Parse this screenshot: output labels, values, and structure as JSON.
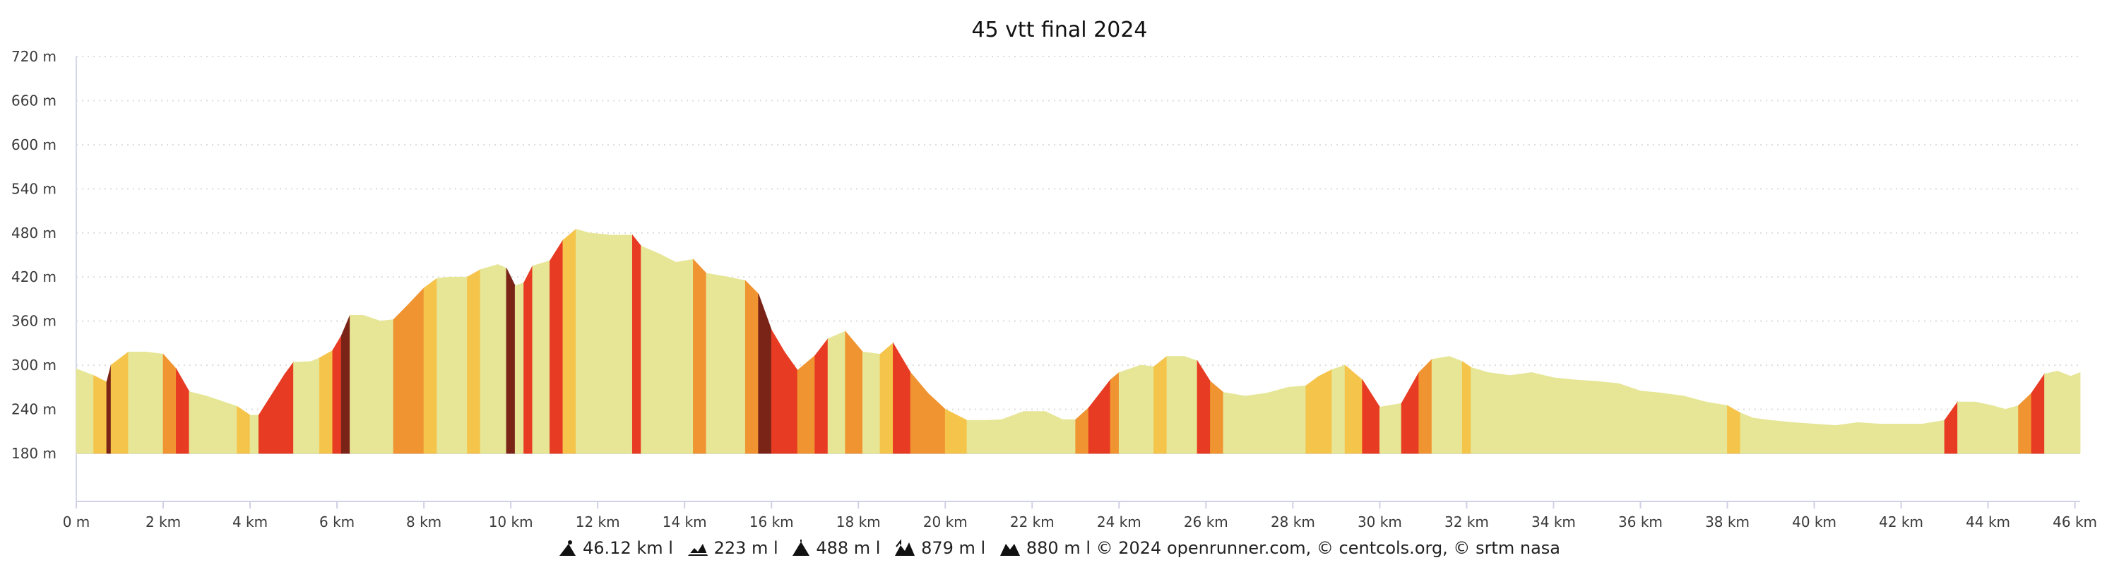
{
  "chart_data": {
    "type": "area",
    "title": "45 vtt final 2024",
    "xlabel": "",
    "ylabel": "",
    "x_unit": "km",
    "y_unit": "m",
    "xlim": [
      0,
      46.12
    ],
    "ylim": [
      180,
      720
    ],
    "x_ticks": [
      "0 m",
      "2 km",
      "4 km",
      "6 km",
      "8 km",
      "10 km",
      "12 km",
      "14 km",
      "16 km",
      "18 km",
      "20 km",
      "22 km",
      "24 km",
      "26 km",
      "28 km",
      "30 km",
      "32 km",
      "34 km",
      "36 km",
      "38 km",
      "40 km",
      "42 km",
      "44 km",
      "46 km"
    ],
    "y_ticks": [
      "720 m",
      "660 m",
      "600 m",
      "540 m",
      "480 m",
      "420 m",
      "360 m",
      "300 m",
      "240 m",
      "180 m"
    ],
    "grid": "horizontal dotted",
    "series": [
      {
        "x": [
          0,
          0.4,
          0.7,
          0.8,
          1.2,
          1.6,
          2.0,
          2.3,
          2.6,
          3.0,
          3.4,
          3.7,
          4.0,
          4.2,
          4.8,
          5.0,
          5.4,
          5.6,
          5.9,
          6.1,
          6.3,
          6.6,
          7.0,
          7.3,
          7.6,
          8.0,
          8.3,
          8.6,
          9.0,
          9.3,
          9.7,
          9.9,
          10.1,
          10.3,
          10.5,
          10.9,
          11.2,
          11.5,
          11.8,
          12.3,
          12.8,
          13.0,
          13.4,
          13.8,
          14.2,
          14.5,
          15.0,
          15.4,
          15.7,
          16.0,
          16.3,
          16.6,
          17.0,
          17.3,
          17.7,
          18.1,
          18.5,
          18.8,
          19.2,
          19.6,
          20.0,
          20.5,
          21.0,
          21.3,
          21.8,
          22.3,
          22.7,
          23.0,
          23.3,
          23.8,
          24.0,
          24.5,
          24.8,
          25.1,
          25.5,
          25.8,
          26.1,
          26.4,
          26.9,
          27.4,
          27.9,
          28.3,
          28.6,
          28.9,
          29.2,
          29.6,
          30.0,
          30.5,
          30.9,
          31.2,
          31.6,
          31.9,
          32.1,
          32.5,
          33.0,
          33.5,
          34.0,
          34.5,
          35.0,
          35.5,
          36.0,
          36.5,
          37.0,
          37.5,
          38.0,
          38.3,
          38.6,
          39.0,
          39.5,
          40.0,
          40.5,
          41.0,
          41.5,
          42.0,
          42.5,
          43.0,
          43.3,
          43.7,
          44.1,
          44.4,
          44.7,
          45.0,
          45.3,
          45.6,
          45.9,
          46.12
        ],
        "y": [
          295,
          286,
          277,
          300,
          318,
          318,
          315,
          295,
          264,
          258,
          250,
          244,
          232,
          232,
          288,
          304,
          305,
          310,
          320,
          340,
          368,
          368,
          360,
          362,
          380,
          405,
          418,
          420,
          420,
          430,
          437,
          432,
          408,
          412,
          435,
          442,
          470,
          485,
          480,
          477,
          477,
          462,
          452,
          440,
          444,
          425,
          420,
          415,
          397,
          348,
          318,
          293,
          313,
          336,
          346,
          318,
          315,
          330,
          290,
          262,
          240,
          225,
          225,
          226,
          237,
          237,
          226,
          226,
          242,
          280,
          290,
          300,
          298,
          312,
          312,
          306,
          278,
          263,
          258,
          262,
          270,
          272,
          285,
          294,
          300,
          280,
          243,
          248,
          290,
          308,
          312,
          305,
          297,
          290,
          286,
          290,
          283,
          280,
          278,
          275,
          265,
          262,
          258,
          250,
          245,
          235,
          228,
          225,
          222,
          220,
          218,
          222,
          220,
          220,
          220,
          225,
          250,
          250,
          245,
          240,
          245,
          262,
          288,
          292,
          285,
          290
        ]
      }
    ],
    "grade_colors": {
      "easy": "#e6e696",
      "moderate": "#f5c44a",
      "hard": "#ef9431",
      "steep": "#e83b23",
      "extreme": "#7a2418"
    }
  },
  "footer": {
    "distance": "46.12 km l",
    "elev_min": "223 m l",
    "elev_max": "488 m l",
    "elev_gain": "879 m l",
    "elev_loss": "880 m l © 2024 openrunner.com, © centcols.org, © srtm nasa"
  }
}
